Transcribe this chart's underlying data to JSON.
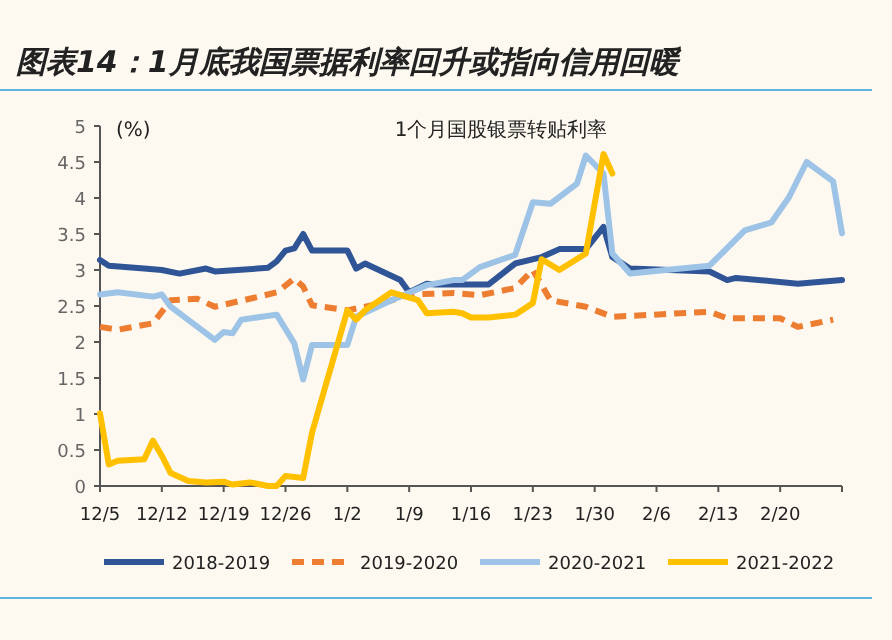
{
  "chart_data": {
    "type": "line",
    "title": "图表14：1月底我国票据利率回升或指向信用回暖",
    "subtitle": "1个月国股银票转贴利率",
    "ylabel": "(%)",
    "xlim": [
      "2021-12-05",
      "2022-02-27"
    ],
    "xticks": [
      {
        "value": "2021-12-05",
        "label": "12/5"
      },
      {
        "value": "2021-12-12",
        "label": "12/12"
      },
      {
        "value": "2021-12-19",
        "label": "12/19"
      },
      {
        "value": "2021-12-26",
        "label": "12/26"
      },
      {
        "value": "2022-01-02",
        "label": "1/2"
      },
      {
        "value": "2022-01-09",
        "label": "1/9"
      },
      {
        "value": "2022-01-16",
        "label": "1/16"
      },
      {
        "value": "2022-01-23",
        "label": "1/23"
      },
      {
        "value": "2022-01-30",
        "label": "1/30"
      },
      {
        "value": "2022-02-06",
        "label": "2/6"
      },
      {
        "value": "2022-02-13",
        "label": "2/13"
      },
      {
        "value": "2022-02-20",
        "label": "2/20"
      }
    ],
    "ylim": [
      0,
      5
    ],
    "yticks": [
      0,
      0.5,
      1,
      1.5,
      2,
      2.5,
      3,
      3.5,
      4,
      4.5,
      5
    ],
    "legend": "bottom",
    "series": [
      {
        "name": "2018-2019",
        "color": "#2f5597",
        "line_style": "solid",
        "x": [
          "2021-12-05",
          "2021-12-06",
          "2021-12-10",
          "2021-12-12",
          "2021-12-14",
          "2021-12-17",
          "2021-12-18",
          "2021-12-24",
          "2021-12-25",
          "2021-12-26",
          "2021-12-27",
          "2021-12-28",
          "2021-12-29",
          "2022-01-02",
          "2022-01-03",
          "2022-01-04",
          "2022-01-08",
          "2022-01-09",
          "2022-01-11",
          "2022-01-12",
          "2022-01-18",
          "2022-01-21",
          "2022-01-24",
          "2022-01-26",
          "2022-01-29",
          "2022-01-31",
          "2022-02-01",
          "2022-02-03",
          "2022-02-12",
          "2022-02-14",
          "2022-02-15",
          "2022-02-22",
          "2022-02-27"
        ],
        "values": [
          3.14,
          3.06,
          3.02,
          3.0,
          2.95,
          3.02,
          2.98,
          3.03,
          3.12,
          3.27,
          3.3,
          3.5,
          3.27,
          3.27,
          3.02,
          3.09,
          2.86,
          2.69,
          2.81,
          2.8,
          2.8,
          3.09,
          3.18,
          3.29,
          3.29,
          3.6,
          3.18,
          3.02,
          2.98,
          2.86,
          2.89,
          2.81,
          2.86
        ]
      },
      {
        "name": "2019-2020",
        "color": "#ed7d31",
        "line_style": "dashed",
        "x": [
          "2021-12-05",
          "2021-12-07",
          "2021-12-11",
          "2021-12-13",
          "2021-12-16",
          "2021-12-18",
          "2021-12-23",
          "2021-12-25",
          "2021-12-27",
          "2021-12-28",
          "2021-12-29",
          "2022-01-02",
          "2022-01-06",
          "2022-01-09",
          "2022-01-14",
          "2022-01-17",
          "2022-01-21",
          "2022-01-23",
          "2022-01-25",
          "2022-01-29",
          "2022-02-01",
          "2022-02-12",
          "2022-02-14",
          "2022-02-20",
          "2022-02-22",
          "2022-02-26"
        ],
        "values": [
          2.21,
          2.17,
          2.26,
          2.58,
          2.6,
          2.49,
          2.63,
          2.69,
          2.88,
          2.77,
          2.51,
          2.44,
          2.54,
          2.66,
          2.68,
          2.65,
          2.75,
          3.0,
          2.58,
          2.49,
          2.35,
          2.42,
          2.33,
          2.33,
          2.21,
          2.31
        ]
      },
      {
        "name": "2020-2021",
        "color": "#9dc3e6",
        "line_style": "solid",
        "x": [
          "2021-12-05",
          "2021-12-07",
          "2021-12-11",
          "2021-12-12",
          "2021-12-13",
          "2021-12-18",
          "2021-12-19",
          "2021-12-20",
          "2021-12-21",
          "2021-12-25",
          "2021-12-27",
          "2021-12-28",
          "2021-12-29",
          "2022-01-02",
          "2022-01-03",
          "2022-01-07",
          "2022-01-11",
          "2022-01-14",
          "2022-01-15",
          "2022-01-17",
          "2022-01-21",
          "2022-01-23",
          "2022-01-25",
          "2022-01-28",
          "2022-01-29",
          "2022-01-31",
          "2022-02-01",
          "2022-02-03",
          "2022-02-12",
          "2022-02-16",
          "2022-02-19",
          "2022-02-21",
          "2022-02-23",
          "2022-02-26",
          "2022-02-27"
        ],
        "values": [
          2.66,
          2.69,
          2.63,
          2.66,
          2.49,
          2.03,
          2.14,
          2.12,
          2.31,
          2.38,
          1.98,
          1.48,
          1.96,
          1.96,
          2.35,
          2.58,
          2.79,
          2.86,
          2.86,
          3.04,
          3.21,
          3.94,
          3.92,
          4.2,
          4.59,
          4.34,
          3.23,
          2.95,
          3.06,
          3.55,
          3.66,
          4.01,
          4.5,
          4.23,
          3.51
        ]
      },
      {
        "name": "2021-2022",
        "color": "#ffc000",
        "line_style": "solid",
        "x": [
          "2021-12-05",
          "2021-12-06",
          "2021-12-07",
          "2021-12-10",
          "2021-12-11",
          "2021-12-12",
          "2021-12-13",
          "2021-12-15",
          "2021-12-17",
          "2021-12-19",
          "2021-12-20",
          "2021-12-22",
          "2021-12-24",
          "2021-12-25",
          "2021-12-26",
          "2021-12-28",
          "2021-12-29",
          "2022-01-02",
          "2022-01-03",
          "2022-01-04",
          "2022-01-07",
          "2022-01-10",
          "2022-01-11",
          "2022-01-14",
          "2022-01-15",
          "2022-01-16",
          "2022-01-18",
          "2022-01-21",
          "2022-01-23",
          "2022-01-24",
          "2022-01-26",
          "2022-01-29",
          "2022-01-31",
          "2022-02-01"
        ],
        "values": [
          1.01,
          0.3,
          0.35,
          0.37,
          0.63,
          0.42,
          0.18,
          0.07,
          0.05,
          0.06,
          0.02,
          0.05,
          0,
          0,
          0.14,
          0.11,
          0.74,
          2.44,
          2.31,
          2.44,
          2.69,
          2.58,
          2.4,
          2.42,
          2.4,
          2.34,
          2.34,
          2.38,
          2.54,
          3.15,
          3.0,
          3.23,
          4.61,
          4.34
        ]
      }
    ]
  }
}
